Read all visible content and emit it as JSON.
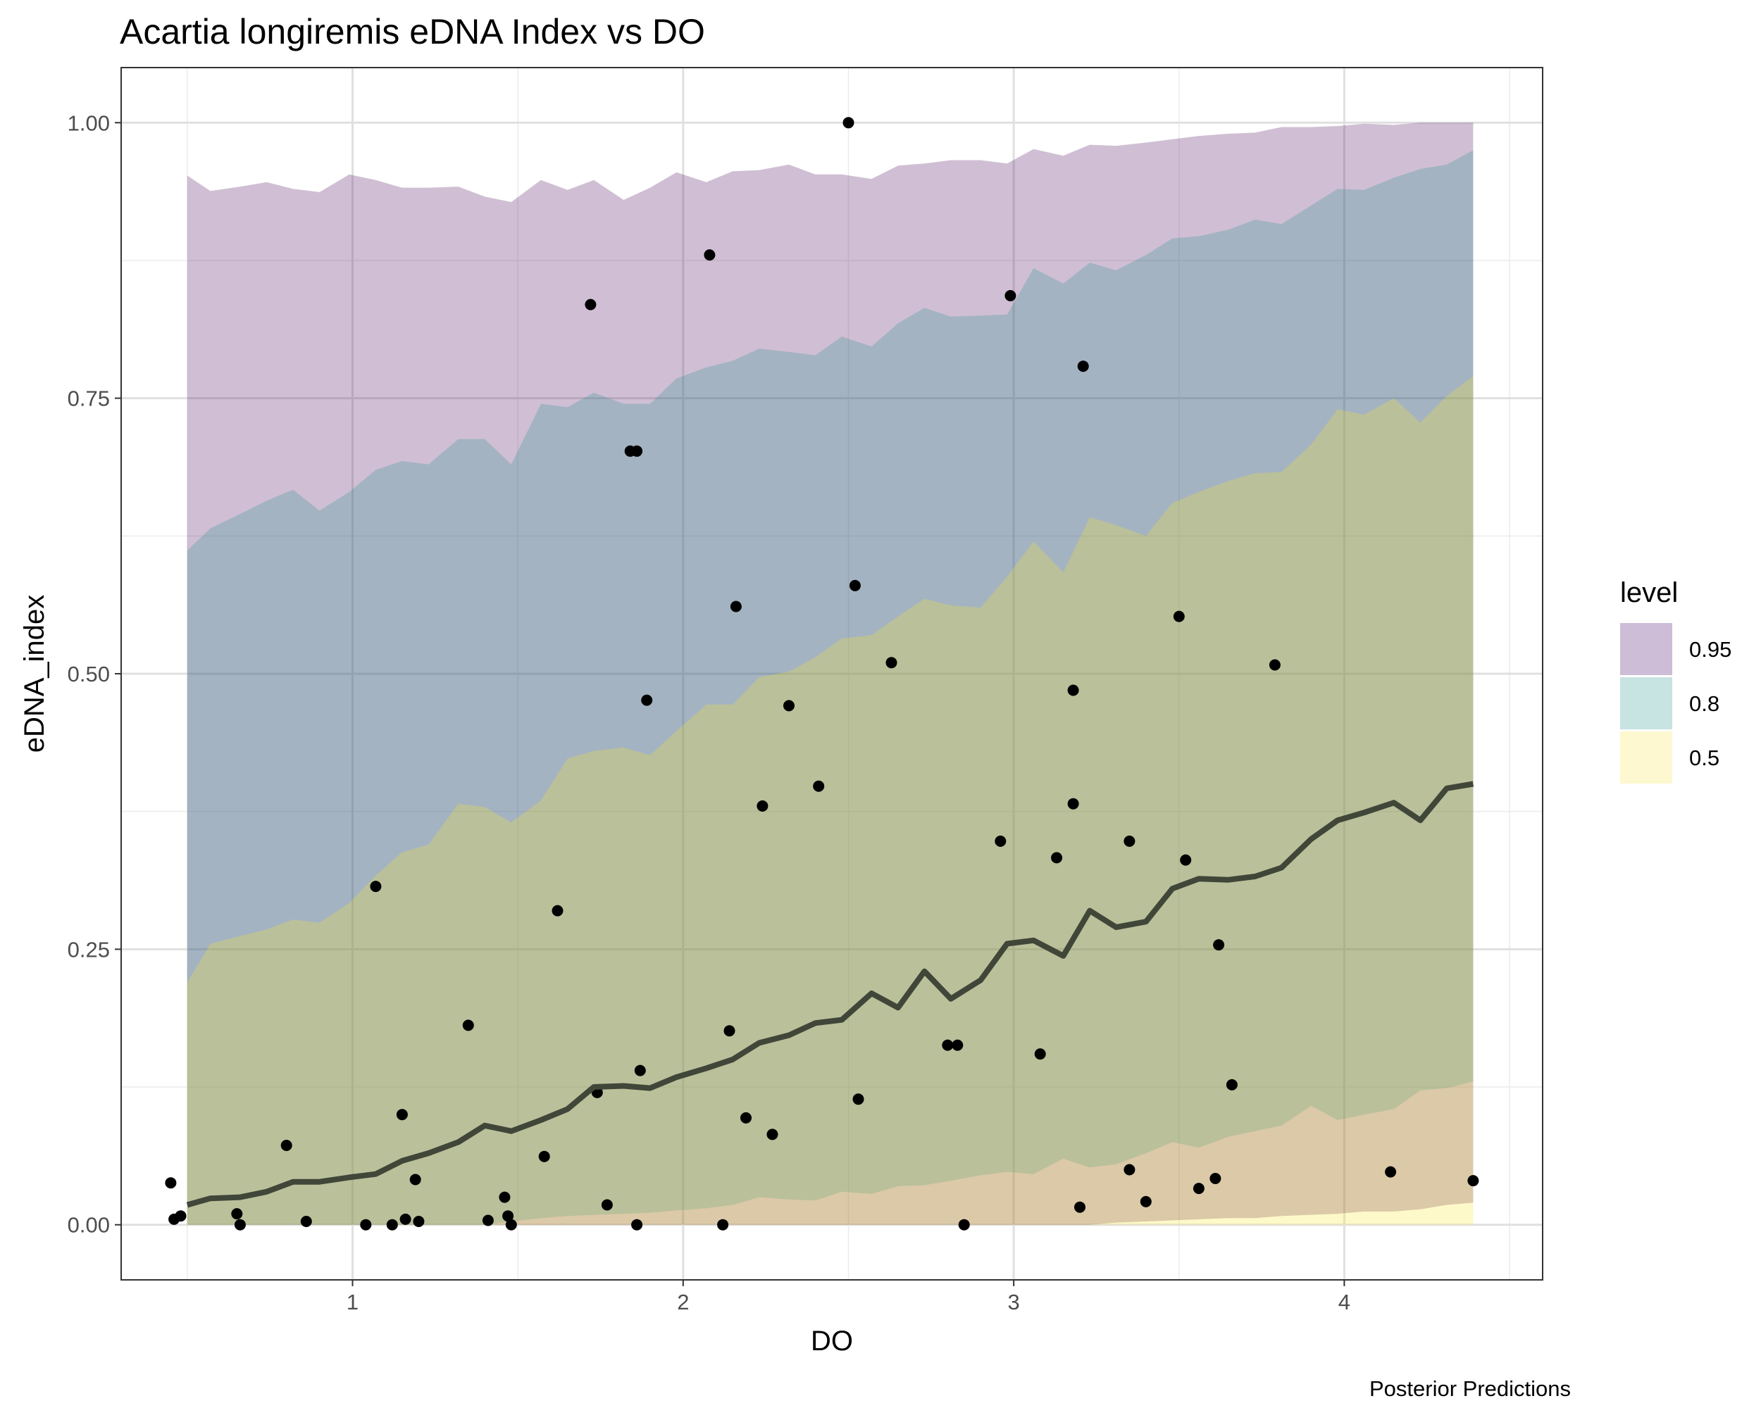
{
  "chart_data": {
    "type": "line",
    "title": "Acartia longiremis eDNA Index vs DO",
    "xlabel": "DO",
    "ylabel": "eDNA_index",
    "caption": "Posterior Predictions",
    "xlim": [
      0.3,
      4.6
    ],
    "ylim": [
      -0.05,
      1.05
    ],
    "x_ticks": [
      1,
      2,
      3,
      4
    ],
    "x_tick_labels": [
      "1",
      "2",
      "3",
      "4"
    ],
    "y_ticks": [
      0,
      0.25,
      0.5,
      0.75,
      1.0
    ],
    "y_tick_labels": [
      "0.00",
      "0.25",
      "0.50",
      "0.75",
      "1.00"
    ],
    "grid": true,
    "legend": {
      "title": "level",
      "position": "right",
      "entries": [
        {
          "label": "0.95",
          "color": "#cdbdd7"
        },
        {
          "label": "0.8",
          "color": "#c7e3e2"
        },
        {
          "label": "0.5",
          "color": "#fdf8cf"
        }
      ]
    },
    "band_colors": {
      "0.95": "#440154",
      "0.8": "#21908c",
      "0.5": "#fde725"
    },
    "band_opacity": 0.25,
    "line_color": "#404638",
    "point_color": "#000000",
    "ribbon_x": [
      0.5,
      0.57,
      0.66,
      0.74,
      0.82,
      0.9,
      0.99,
      1.07,
      1.15,
      1.23,
      1.32,
      1.4,
      1.48,
      1.57,
      1.65,
      1.73,
      1.82,
      1.9,
      1.98,
      2.07,
      2.15,
      2.23,
      2.32,
      2.4,
      2.48,
      2.57,
      2.65,
      2.73,
      2.81,
      2.9,
      2.98,
      3.06,
      3.15,
      3.23,
      3.31,
      3.4,
      3.48,
      3.56,
      3.65,
      3.73,
      3.81,
      3.9,
      3.98,
      4.06,
      4.15,
      4.23,
      4.31,
      4.39
    ],
    "ribbons": [
      {
        "level": "0.95",
        "lower": [
          0,
          0,
          0,
          0,
          0,
          0,
          0,
          0,
          0,
          0,
          0,
          0,
          0,
          0,
          0,
          0,
          0,
          0,
          0,
          0,
          0,
          0,
          0,
          0,
          0,
          0,
          0,
          0,
          0,
          0,
          0,
          0,
          0,
          0,
          0.002,
          0.003,
          0.004,
          0.005,
          0.006,
          0.006,
          0.008,
          0.009,
          0.01,
          0.012,
          0.012,
          0.014,
          0.018,
          0.02
        ],
        "upper": [
          0.952,
          0.938,
          0.942,
          0.946,
          0.94,
          0.937,
          0.953,
          0.948,
          0.941,
          0.941,
          0.942,
          0.933,
          0.928,
          0.948,
          0.939,
          0.948,
          0.93,
          0.941,
          0.955,
          0.946,
          0.956,
          0.957,
          0.962,
          0.953,
          0.953,
          0.949,
          0.961,
          0.963,
          0.966,
          0.966,
          0.963,
          0.976,
          0.97,
          0.98,
          0.979,
          0.982,
          0.985,
          0.988,
          0.99,
          0.991,
          0.996,
          0.996,
          0.997,
          0.999,
          0.998,
          1.0,
          1.0,
          1.0
        ]
      },
      {
        "level": "0.8",
        "lower": [
          0,
          0,
          0,
          0,
          0,
          0,
          0,
          0,
          0,
          0,
          0,
          0,
          0.003,
          0.006,
          0.008,
          0.009,
          0.01,
          0.011,
          0.013,
          0.015,
          0.018,
          0.025,
          0.023,
          0.022,
          0.03,
          0.028,
          0.035,
          0.036,
          0.04,
          0.045,
          0.048,
          0.046,
          0.06,
          0.052,
          0.055,
          0.065,
          0.075,
          0.07,
          0.08,
          0.085,
          0.09,
          0.108,
          0.095,
          0.1,
          0.105,
          0.122,
          0.124,
          0.13
        ],
        "upper": [
          0.612,
          0.632,
          0.645,
          0.657,
          0.667,
          0.648,
          0.665,
          0.685,
          0.693,
          0.69,
          0.713,
          0.713,
          0.69,
          0.745,
          0.742,
          0.755,
          0.745,
          0.745,
          0.768,
          0.778,
          0.784,
          0.795,
          0.792,
          0.789,
          0.806,
          0.797,
          0.818,
          0.832,
          0.824,
          0.825,
          0.826,
          0.868,
          0.854,
          0.873,
          0.866,
          0.88,
          0.895,
          0.897,
          0.903,
          0.912,
          0.908,
          0.925,
          0.94,
          0.939,
          0.95,
          0.958,
          0.962,
          0.975
        ]
      },
      {
        "level": "0.5",
        "lower": [
          0,
          0,
          0,
          0,
          0,
          0,
          0,
          0,
          0,
          0,
          0,
          0,
          0,
          0,
          0,
          0,
          0,
          0,
          0,
          0,
          0,
          0,
          0,
          0,
          0,
          0,
          0,
          0,
          0,
          0,
          0,
          0,
          0,
          0,
          0,
          0,
          0,
          0,
          0,
          0,
          0,
          0,
          0,
          0,
          0,
          0,
          0,
          0
        ],
        "upper": [
          0.22,
          0.255,
          0.262,
          0.268,
          0.277,
          0.274,
          0.292,
          0.317,
          0.338,
          0.345,
          0.382,
          0.379,
          0.365,
          0.385,
          0.423,
          0.43,
          0.433,
          0.426,
          0.448,
          0.472,
          0.472,
          0.497,
          0.502,
          0.515,
          0.532,
          0.535,
          0.552,
          0.568,
          0.562,
          0.56,
          0.588,
          0.62,
          0.592,
          0.642,
          0.635,
          0.625,
          0.655,
          0.665,
          0.675,
          0.682,
          0.683,
          0.708,
          0.74,
          0.735,
          0.75,
          0.728,
          0.752,
          0.77
        ]
      }
    ],
    "median_line": {
      "x": [
        0.5,
        0.57,
        0.66,
        0.74,
        0.82,
        0.9,
        0.99,
        1.07,
        1.15,
        1.23,
        1.32,
        1.4,
        1.48,
        1.57,
        1.65,
        1.73,
        1.82,
        1.9,
        1.98,
        2.07,
        2.15,
        2.23,
        2.32,
        2.4,
        2.48,
        2.57,
        2.65,
        2.73,
        2.81,
        2.9,
        2.98,
        3.06,
        3.15,
        3.23,
        3.31,
        3.4,
        3.48,
        3.56,
        3.65,
        3.73,
        3.81,
        3.9,
        3.98,
        4.06,
        4.15,
        4.23,
        4.31,
        4.39
      ],
      "y": [
        0.018,
        0.024,
        0.025,
        0.03,
        0.039,
        0.039,
        0.043,
        0.046,
        0.058,
        0.065,
        0.075,
        0.09,
        0.085,
        0.095,
        0.105,
        0.125,
        0.126,
        0.124,
        0.134,
        0.142,
        0.15,
        0.165,
        0.172,
        0.183,
        0.186,
        0.21,
        0.197,
        0.23,
        0.205,
        0.222,
        0.255,
        0.258,
        0.244,
        0.285,
        0.27,
        0.275,
        0.305,
        0.314,
        0.313,
        0.316,
        0.324,
        0.35,
        0.367,
        0.374,
        0.383,
        0.367,
        0.396,
        0.4
      ]
    },
    "points": [
      [
        0.45,
        0.038
      ],
      [
        0.46,
        0.005
      ],
      [
        0.48,
        0.008
      ],
      [
        0.65,
        0.01
      ],
      [
        0.66,
        0.0
      ],
      [
        0.8,
        0.072
      ],
      [
        0.86,
        0.003
      ],
      [
        1.04,
        0.0
      ],
      [
        1.07,
        0.307
      ],
      [
        1.12,
        0.0
      ],
      [
        1.15,
        0.1
      ],
      [
        1.16,
        0.005
      ],
      [
        1.19,
        0.041
      ],
      [
        1.2,
        0.003
      ],
      [
        1.35,
        0.181
      ],
      [
        1.41,
        0.004
      ],
      [
        1.46,
        0.025
      ],
      [
        1.47,
        0.008
      ],
      [
        1.48,
        0.0
      ],
      [
        1.58,
        0.062
      ],
      [
        1.62,
        0.285
      ],
      [
        1.72,
        0.835
      ],
      [
        1.74,
        0.12
      ],
      [
        1.77,
        0.018
      ],
      [
        1.84,
        0.702
      ],
      [
        1.86,
        0.702
      ],
      [
        1.86,
        0.0
      ],
      [
        1.87,
        0.14
      ],
      [
        1.89,
        0.476
      ],
      [
        2.08,
        0.88
      ],
      [
        2.12,
        0.0
      ],
      [
        2.14,
        0.176
      ],
      [
        2.16,
        0.561
      ],
      [
        2.19,
        0.097
      ],
      [
        2.24,
        0.38
      ],
      [
        2.27,
        0.082
      ],
      [
        2.32,
        0.471
      ],
      [
        2.41,
        0.398
      ],
      [
        2.5,
        1.0
      ],
      [
        2.52,
        0.58
      ],
      [
        2.53,
        0.114
      ],
      [
        2.63,
        0.51
      ],
      [
        2.8,
        0.163
      ],
      [
        2.83,
        0.163
      ],
      [
        2.85,
        0.0
      ],
      [
        2.96,
        0.348
      ],
      [
        2.99,
        0.843
      ],
      [
        3.08,
        0.155
      ],
      [
        3.13,
        0.333
      ],
      [
        3.18,
        0.485
      ],
      [
        3.18,
        0.382
      ],
      [
        3.2,
        0.016
      ],
      [
        3.21,
        0.779
      ],
      [
        3.35,
        0.05
      ],
      [
        3.35,
        0.348
      ],
      [
        3.4,
        0.021
      ],
      [
        3.5,
        0.552
      ],
      [
        3.52,
        0.331
      ],
      [
        3.56,
        0.033
      ],
      [
        3.61,
        0.042
      ],
      [
        3.62,
        0.254
      ],
      [
        3.66,
        0.127
      ],
      [
        3.79,
        0.508
      ],
      [
        4.14,
        0.048
      ],
      [
        4.39,
        0.04
      ]
    ]
  }
}
